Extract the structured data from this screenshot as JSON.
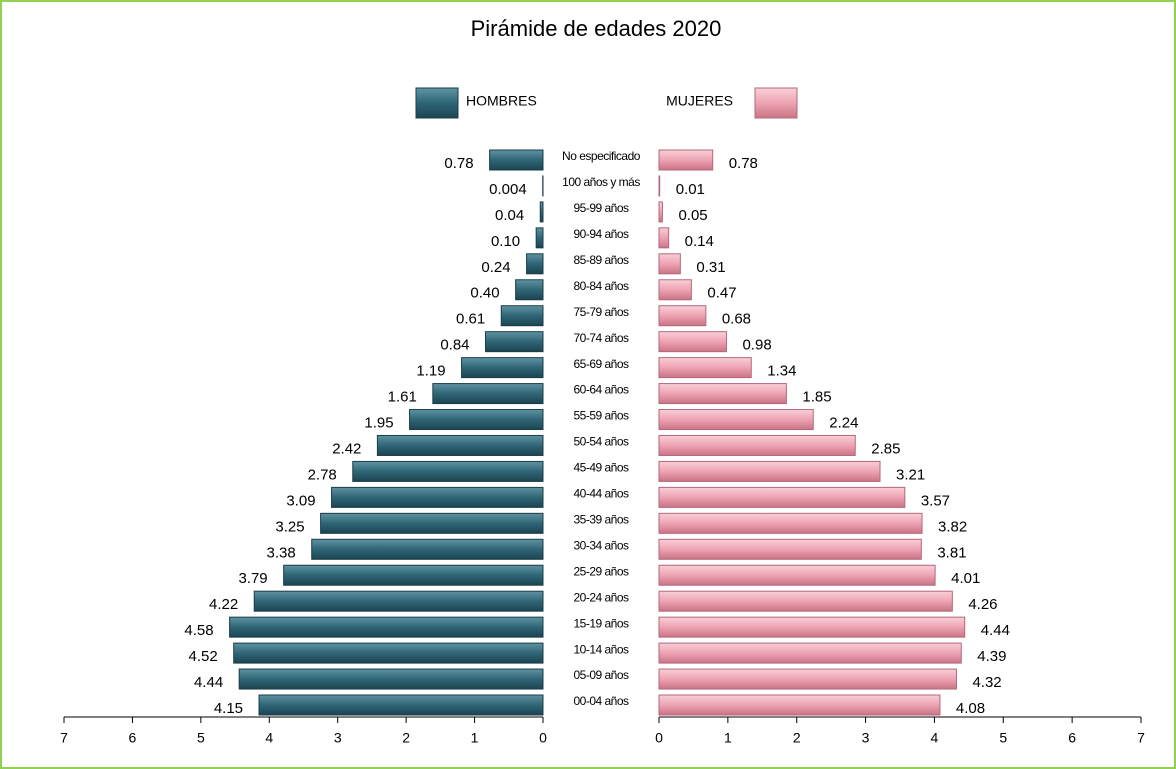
{
  "chart_data": {
    "type": "pyramid",
    "title": "Pirámide de edades 2020",
    "categories": [
      "No especificado",
      "100 años y más",
      "95-99 años",
      "90-94 años",
      "85-89 años",
      "80-84 años",
      "75-79 años",
      "70-74 años",
      "65-69 años",
      "60-64 años",
      "55-59 años",
      "50-54 años",
      "45-49 años",
      "40-44 años",
      "35-39 años",
      "30-34 años",
      "25-29 años",
      "20-24 años",
      "15-19 años",
      "10-14 años",
      "05-09 años",
      "00-04 años"
    ],
    "series": [
      {
        "name": "HOMBRES",
        "color": "#2f6676",
        "side": "left",
        "values": [
          0.78,
          0.004,
          0.04,
          0.1,
          0.24,
          0.4,
          0.61,
          0.84,
          1.19,
          1.61,
          1.95,
          2.42,
          2.78,
          3.09,
          3.25,
          3.38,
          3.79,
          4.22,
          4.58,
          4.52,
          4.44,
          4.15
        ],
        "value_labels": [
          "0.78",
          "0.004",
          "0.04",
          "0.10",
          "0.24",
          "0.40",
          "0.61",
          "0.84",
          "1.19",
          "1.61",
          "1.95",
          "2.42",
          "2.78",
          "3.09",
          "3.25",
          "3.38",
          "3.79",
          "4.22",
          "4.58",
          "4.52",
          "4.44",
          "4.15"
        ]
      },
      {
        "name": "MUJERES",
        "color": "#eea3b2",
        "side": "right",
        "values": [
          0.78,
          0.01,
          0.05,
          0.14,
          0.31,
          0.47,
          0.68,
          0.98,
          1.34,
          1.85,
          2.24,
          2.85,
          3.21,
          3.57,
          3.82,
          3.81,
          4.01,
          4.26,
          4.44,
          4.39,
          4.32,
          4.08
        ],
        "value_labels": [
          "0.78",
          "0.01",
          "0.05",
          "0.14",
          "0.31",
          "0.47",
          "0.68",
          "0.98",
          "1.34",
          "1.85",
          "2.24",
          "2.85",
          "3.21",
          "3.57",
          "3.82",
          "3.81",
          "4.01",
          "4.26",
          "4.44",
          "4.39",
          "4.32",
          "4.08"
        ]
      }
    ],
    "xlim": [
      0,
      7
    ],
    "xticks": [
      0,
      1,
      2,
      3,
      4,
      5,
      6,
      7
    ]
  }
}
